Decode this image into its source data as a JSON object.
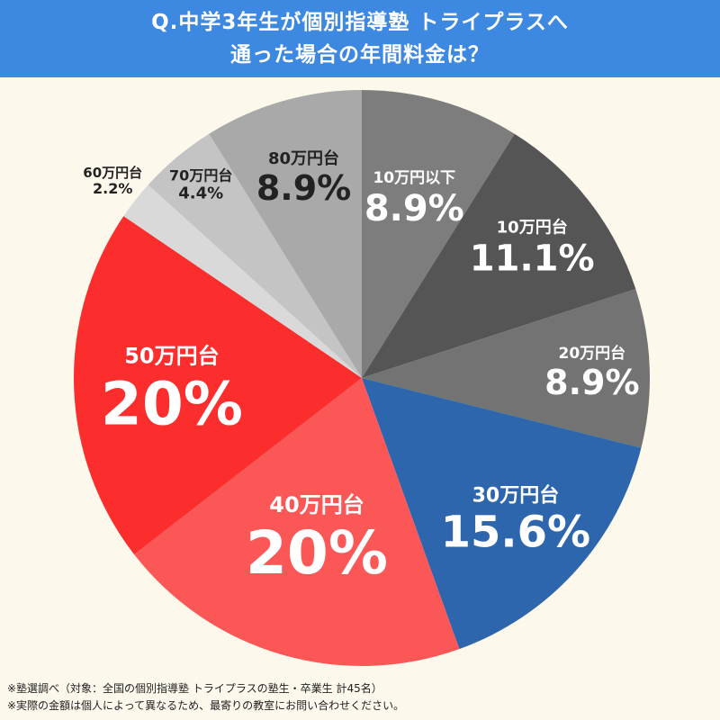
{
  "header": {
    "title_line1": "Q.中学3年生が個別指導塾 トライプラスへ",
    "title_line2": "通った場合の年間料金は？"
  },
  "chart_data": {
    "type": "pie",
    "title": "Q.中学3年生が個別指導塾 トライプラスへ 通った場合の年間料金は？",
    "start": "12 o'clock, clockwise",
    "slices": [
      {
        "label": "10万円以下",
        "value": 8.9,
        "value_label": "8.9%",
        "color": "#7d7d7d"
      },
      {
        "label": "10万円台",
        "value": 11.1,
        "value_label": "11.1%",
        "color": "#555555"
      },
      {
        "label": "20万円台",
        "value": 8.9,
        "value_label": "8.9%",
        "color": "#737373"
      },
      {
        "label": "30万円台",
        "value": 15.6,
        "value_label": "15.6%",
        "color": "#2e66ad"
      },
      {
        "label": "40万円台",
        "value": 20,
        "value_label": "20%",
        "color": "#fb5757"
      },
      {
        "label": "50万円台",
        "value": 20,
        "value_label": "20%",
        "color": "#fb2d2d"
      },
      {
        "label": "60万円台",
        "value": 2.2,
        "value_label": "2.2%",
        "color": "#d9d9d9"
      },
      {
        "label": "70万円台",
        "value": 4.4,
        "value_label": "4.4%",
        "color": "#c4c4c4"
      },
      {
        "label": "80万円台",
        "value": 8.9,
        "value_label": "8.9%",
        "color": "#a9a9a9"
      }
    ]
  },
  "footer": {
    "note1": "※塾選調べ（対象：全国の個別指導塾 トライプラスの塾生・卒業生 計45名）",
    "note2": "※実際の金額は個人によって異なるため、最寄りの教室にお問い合わせください。"
  }
}
